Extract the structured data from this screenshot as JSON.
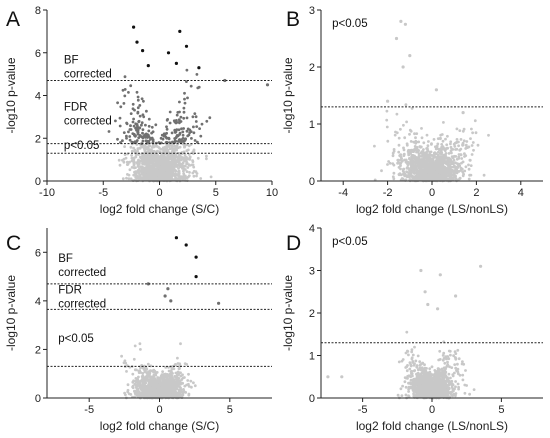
{
  "chart_data": [
    {
      "panel": "A",
      "type": "scatter",
      "xlabel": "log2 fold change (S/C)",
      "ylabel": "-log10 p-value",
      "xlim": [
        -10,
        10
      ],
      "ylim": [
        0,
        8
      ],
      "xticks": [
        -10,
        -5,
        0,
        5,
        10
      ],
      "yticks": [
        0,
        2,
        4,
        6,
        8
      ],
      "point_color_nonsig": "#c8c8c8",
      "point_color_sig": "#707070",
      "thresholds": [
        {
          "y": 4.7,
          "label_lines": [
            "BF",
            "corrected"
          ],
          "label_x": -8.5,
          "label_y": 5.5
        },
        {
          "y": 1.75,
          "label_lines": [
            "FDR",
            "corrected"
          ],
          "label_x": -8.5,
          "label_y": 3.3
        },
        {
          "y": 1.3,
          "label_lines": [
            "p<0.05"
          ],
          "label_x": -8.5,
          "label_y": 1.5
        }
      ],
      "sample_points": [
        [
          -2.3,
          7.2
        ],
        [
          -2,
          6.5
        ],
        [
          -1.5,
          6.1
        ],
        [
          1.8,
          7
        ],
        [
          2.4,
          6.3
        ],
        [
          0.8,
          6
        ],
        [
          -1,
          5.4
        ],
        [
          1.5,
          5.5
        ],
        [
          3.5,
          5.3
        ],
        [
          9.6,
          4.5
        ],
        [
          5.8,
          4.7
        ]
      ]
    },
    {
      "panel": "B",
      "type": "scatter",
      "xlabel": "log2 fold change (LS/nonLS)",
      "ylabel": "-log10 p-value",
      "xlim": [
        -5,
        5
      ],
      "ylim": [
        0,
        3
      ],
      "xticks": [
        -4,
        -2,
        0,
        2,
        4
      ],
      "yticks": [
        0,
        1,
        2,
        3
      ],
      "point_color_nonsig": "#c8c8c8",
      "point_color_sig": "#c8c8c8",
      "thresholds": [
        {
          "y": 1.3,
          "label_lines": [
            "p<0.05"
          ],
          "label_x": -4.5,
          "label_y": 2.7
        }
      ],
      "sample_points": [
        [
          -1.4,
          2.8
        ],
        [
          -1.2,
          2.75
        ],
        [
          -1.6,
          2.5
        ],
        [
          -1,
          2.2
        ],
        [
          -1.3,
          2
        ],
        [
          0.2,
          1.6
        ],
        [
          1.4,
          1.2
        ],
        [
          -2,
          1.4
        ]
      ]
    },
    {
      "panel": "C",
      "type": "scatter",
      "xlabel": "log2 fold change (S/C)",
      "ylabel": "-log10 p-value",
      "xlim": [
        -8,
        8
      ],
      "ylim": [
        0,
        7
      ],
      "xticks": [
        -5,
        0,
        5
      ],
      "yticks": [
        0,
        2,
        4,
        6
      ],
      "point_color_nonsig": "#c8c8c8",
      "point_color_sig": "#707070",
      "thresholds": [
        {
          "y": 4.7,
          "label_lines": [
            "BF",
            "corrected"
          ],
          "label_x": -7.2,
          "label_y": 5.6
        },
        {
          "y": 3.65,
          "label_lines": [
            "FDR",
            "corrected"
          ],
          "label_x": -7.2,
          "label_y": 4.3
        },
        {
          "y": 1.3,
          "label_lines": [
            "p<0.05"
          ],
          "label_x": -7.2,
          "label_y": 2.3
        }
      ],
      "sample_points": [
        [
          1.2,
          6.6
        ],
        [
          1.9,
          6.3
        ],
        [
          2.6,
          5.8
        ],
        [
          2.6,
          5
        ],
        [
          -0.8,
          4.7
        ],
        [
          0.6,
          4.5
        ],
        [
          0.4,
          4.2
        ],
        [
          0.8,
          4
        ],
        [
          4.2,
          3.9
        ]
      ]
    },
    {
      "panel": "D",
      "type": "scatter",
      "xlabel": "log2 fold change (LS/nonLS)",
      "ylabel": "-log10 p-value",
      "xlim": [
        -8,
        8
      ],
      "ylim": [
        0,
        4
      ],
      "xticks": [
        -5,
        0,
        5
      ],
      "yticks": [
        0,
        1,
        2,
        3,
        4
      ],
      "point_color_nonsig": "#c8c8c8",
      "point_color_sig": "#c8c8c8",
      "thresholds": [
        {
          "y": 1.3,
          "label_lines": [
            "p<0.05"
          ],
          "label_x": -7.2,
          "label_y": 3.6
        }
      ],
      "sample_points": [
        [
          -0.8,
          3
        ],
        [
          3.5,
          3.1
        ],
        [
          0.6,
          2.9
        ],
        [
          -0.5,
          2.5
        ],
        [
          -0.3,
          2.2
        ],
        [
          0.4,
          2.1
        ],
        [
          1.7,
          2.4
        ],
        [
          -6.5,
          0.5
        ],
        [
          -7.5,
          0.5
        ]
      ]
    }
  ]
}
